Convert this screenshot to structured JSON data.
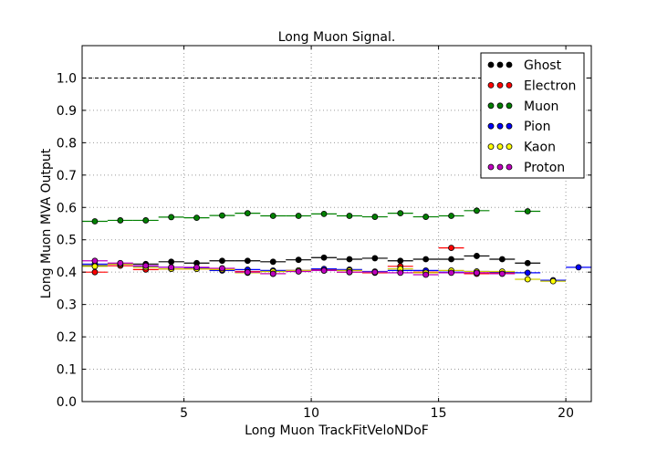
{
  "chart_data": {
    "type": "scatter",
    "title": "Long Muon Signal.",
    "xlabel": "Long Muon TrackFitVeloNDoF",
    "ylabel": "Long Muon MVA Output",
    "xlim": [
      1,
      21
    ],
    "ylim": [
      0.0,
      1.1
    ],
    "xticks": [
      5,
      10,
      15,
      20
    ],
    "yticks": [
      0.0,
      0.1,
      0.2,
      0.3,
      0.4,
      0.5,
      0.6,
      0.7,
      0.8,
      0.9,
      1.0
    ],
    "xtick_labels": [
      "5",
      "10",
      "15",
      "20"
    ],
    "ytick_labels": [
      "0.0",
      "0.1",
      "0.2",
      "0.3",
      "0.4",
      "0.5",
      "0.6",
      "0.7",
      "0.8",
      "0.9",
      "1.0"
    ],
    "grid": true,
    "reference_line": 1.0,
    "legend_position": "top-right",
    "series": [
      {
        "name": "Ghost",
        "color": "#000000",
        "x": [
          1.5,
          2.5,
          3.5,
          4.5,
          5.5,
          6.5,
          7.5,
          8.5,
          9.5,
          10.5,
          11.5,
          12.5,
          13.5,
          14.5,
          15.5,
          16.5,
          17.5,
          18.5
        ],
        "y": [
          0.42,
          0.425,
          0.425,
          0.432,
          0.428,
          0.435,
          0.435,
          0.432,
          0.438,
          0.445,
          0.44,
          0.443,
          0.435,
          0.44,
          0.44,
          0.45,
          0.44,
          0.428
        ]
      },
      {
        "name": "Electron",
        "color": "#ff0000",
        "x": [
          1.5,
          2.5,
          3.5,
          4.5,
          5.5,
          6.5,
          7.5,
          8.5,
          9.5,
          10.5,
          11.5,
          12.5,
          13.5,
          14.5,
          15.5,
          16.5,
          17.5
        ],
        "y": [
          0.4,
          0.42,
          0.408,
          0.41,
          0.41,
          0.408,
          0.402,
          0.395,
          0.405,
          0.408,
          0.4,
          0.398,
          0.418,
          0.4,
          0.475,
          0.395,
          0.398
        ]
      },
      {
        "name": "Muon",
        "color": "#008000",
        "x": [
          1.5,
          2.5,
          3.5,
          4.5,
          5.5,
          6.5,
          7.5,
          8.5,
          9.5,
          10.5,
          11.5,
          12.5,
          13.5,
          14.5,
          15.5,
          16.5,
          18.5
        ],
        "y": [
          0.557,
          0.56,
          0.56,
          0.57,
          0.568,
          0.575,
          0.582,
          0.574,
          0.574,
          0.58,
          0.574,
          0.571,
          0.582,
          0.571,
          0.574,
          0.59,
          0.588
        ]
      },
      {
        "name": "Pion",
        "color": "#0000ff",
        "x": [
          1.5,
          2.5,
          3.5,
          4.5,
          5.5,
          6.5,
          7.5,
          8.5,
          9.5,
          10.5,
          11.5,
          12.5,
          13.5,
          14.5,
          15.5,
          16.5,
          17.5,
          18.5,
          19.5,
          20.5
        ],
        "y": [
          0.425,
          0.425,
          0.418,
          0.415,
          0.412,
          0.405,
          0.408,
          0.405,
          0.405,
          0.41,
          0.408,
          0.402,
          0.405,
          0.405,
          0.4,
          0.402,
          0.4,
          0.398,
          0.375,
          0.415
        ]
      },
      {
        "name": "Kaon",
        "color": "#ffff00",
        "x": [
          1.5,
          2.5,
          3.5,
          4.5,
          5.5,
          6.5,
          7.5,
          8.5,
          9.5,
          10.5,
          11.5,
          12.5,
          13.5,
          14.5,
          15.5,
          16.5,
          17.5,
          18.5,
          19.5
        ],
        "y": [
          0.418,
          0.425,
          0.415,
          0.41,
          0.41,
          0.408,
          0.398,
          0.402,
          0.405,
          0.405,
          0.405,
          0.4,
          0.41,
          0.398,
          0.405,
          0.402,
          0.402,
          0.378,
          0.372
        ]
      },
      {
        "name": "Proton",
        "color": "#bf00bf",
        "x": [
          1.5,
          2.5,
          3.5,
          4.5,
          5.5,
          6.5,
          7.5,
          8.5,
          9.5,
          10.5,
          11.5,
          12.5,
          13.5,
          14.5,
          15.5,
          16.5,
          17.5
        ],
        "y": [
          0.435,
          0.428,
          0.42,
          0.415,
          0.415,
          0.412,
          0.4,
          0.395,
          0.402,
          0.405,
          0.4,
          0.4,
          0.398,
          0.392,
          0.398,
          0.398,
          0.395
        ]
      }
    ]
  }
}
